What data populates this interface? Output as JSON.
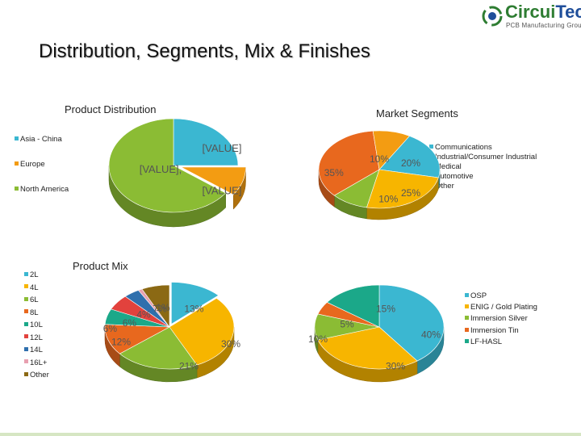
{
  "logo": {
    "name_part1": "Circui",
    "name_part2": "Tech",
    "tagline": "PCB Manufacturing Group"
  },
  "page_title": "Distribution, Segments, Mix & Finishes",
  "colors": {
    "cyan": "#3bb7d1",
    "orange": "#f39c12",
    "green": "#8bbc34",
    "red": "#e2423d",
    "blue": "#2f6fad",
    "olive": "#5e5a2a",
    "orange_red": "#e8681e",
    "yellow": "#f7b500",
    "teal": "#1ba889"
  },
  "chart_data": [
    {
      "id": "product-distribution",
      "type": "pie",
      "title": "Product Distribution",
      "categories": [
        "Asia - China",
        "Europe",
        "North America"
      ],
      "values": [
        25,
        10,
        65
      ],
      "colors": [
        "#3bb7d1",
        "#f39c12",
        "#8bbc34"
      ],
      "labels": [
        "[VALUE]",
        "[VALUE]",
        "[VALUE],"
      ],
      "legend_position": "left"
    },
    {
      "id": "market-segments",
      "type": "pie",
      "title": "Market Segments",
      "categories": [
        "Communications",
        "Industrial/Consumer Industrial",
        "Medical",
        "Automotive",
        "Other"
      ],
      "values": [
        20,
        25,
        10,
        35,
        10
      ],
      "colors": [
        "#3bb7d1",
        "#f7b500",
        "#8bbc34",
        "#e8681e",
        "#f39c12"
      ],
      "labels": [
        "20%",
        "25%",
        "10%",
        "35%",
        "10%"
      ],
      "legend_position": "right"
    },
    {
      "id": "product-mix",
      "type": "pie",
      "title": "Product Mix",
      "categories": [
        "2L",
        "4L",
        "6L",
        "8L",
        "10L",
        "12L",
        "14L",
        "16L+",
        "Other"
      ],
      "values": [
        13,
        30,
        21,
        12,
        6,
        6,
        4,
        1,
        7
      ],
      "colors": [
        "#3bb7d1",
        "#f7b500",
        "#8bbc34",
        "#e8681e",
        "#1ba889",
        "#e2423d",
        "#2f6fad",
        "#e8a0b0",
        "#8b6914"
      ],
      "labels": [
        "13%",
        "30%",
        "21%",
        "12%",
        "6%",
        "6%",
        "4%",
        "1%",
        "7%"
      ],
      "legend_position": "left"
    },
    {
      "id": "finishes",
      "type": "pie",
      "title": "",
      "categories": [
        "OSP",
        "ENIG / Gold Plating",
        "Immersion Silver",
        "Immersion Tin",
        "LF-HASL"
      ],
      "values": [
        40,
        30,
        10,
        5,
        15
      ],
      "colors": [
        "#3bb7d1",
        "#f7b500",
        "#8bbc34",
        "#e8681e",
        "#1ba889"
      ],
      "labels": [
        "40%",
        "30%",
        "10%",
        "5%",
        "15%"
      ],
      "legend_position": "right"
    }
  ]
}
